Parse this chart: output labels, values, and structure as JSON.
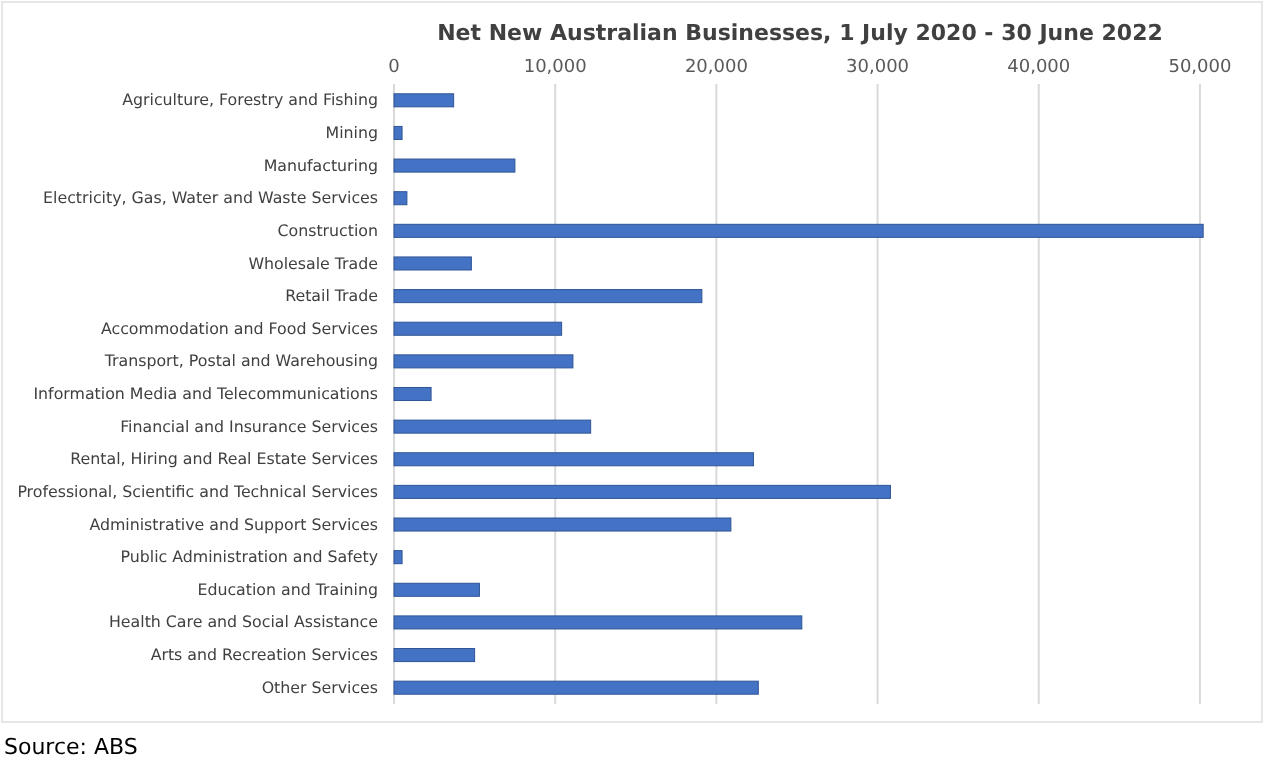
{
  "chart_data": {
    "type": "bar",
    "orientation": "horizontal",
    "title": "Net New Australian Businesses, 1 July 2020 - 30 June 2022",
    "categories": [
      "Agriculture, Forestry and Fishing",
      "Mining",
      "Manufacturing",
      "Electricity, Gas, Water and Waste Services",
      "Construction",
      "Wholesale Trade",
      "Retail Trade",
      "Accommodation and Food Services",
      "Transport, Postal and Warehousing",
      "Information Media and Telecommunications",
      "Financial and Insurance Services",
      "Rental, Hiring and Real Estate Services",
      "Professional, Scientific and Technical Services",
      "Administrative and Support Services",
      "Public Administration and Safety",
      "Education and Training",
      "Health Care and Social Assistance",
      "Arts and Recreation Services",
      "Other Services"
    ],
    "values": [
      3700,
      500,
      7500,
      800,
      50200,
      4800,
      19100,
      10400,
      11100,
      2300,
      12200,
      22300,
      30800,
      20900,
      500,
      5300,
      25300,
      5000,
      22600
    ],
    "color": "#4472c4",
    "xlim": [
      0,
      50500
    ],
    "xticks": [
      {
        "value": 0,
        "label": "0"
      },
      {
        "value": 10000,
        "label": "10,000"
      },
      {
        "value": 20000,
        "label": "20,000"
      },
      {
        "value": 30000,
        "label": "30,000"
      },
      {
        "value": 40000,
        "label": "40,000"
      },
      {
        "value": 50000,
        "label": "50,000"
      }
    ],
    "grid": "x",
    "annotations": [
      "Source: ABS"
    ]
  }
}
